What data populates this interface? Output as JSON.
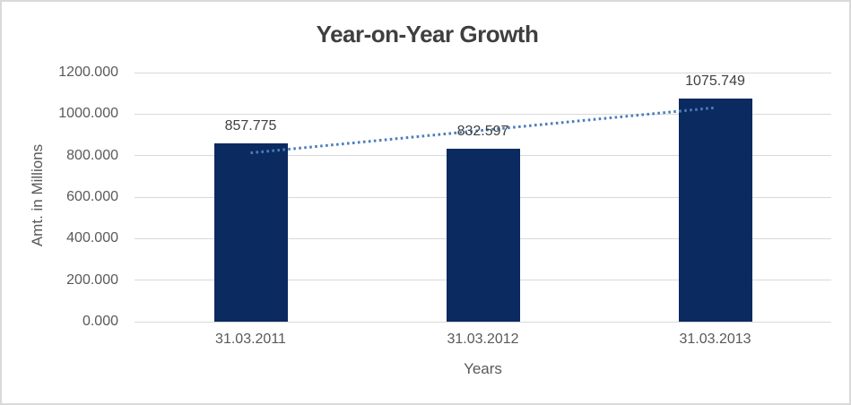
{
  "window": {
    "background": "#ffffff",
    "border_color": "#d9d9d9"
  },
  "chart_data": {
    "type": "bar",
    "title": "Year-on-Year Growth",
    "xlabel": "Years",
    "ylabel": "Amt. in Millions",
    "categories": [
      "31.03.2011",
      "31.03.2012",
      "31.03.2013"
    ],
    "values": [
      857.775,
      832.597,
      1075.749
    ],
    "data_labels": [
      "857.775",
      "832.597",
      "1075.749"
    ],
    "ylim": [
      0,
      1200
    ],
    "ytick_step": 200,
    "ytick_labels": [
      "0.000",
      "200.000",
      "400.000",
      "600.000",
      "800.000",
      "1000.000",
      "1200.000"
    ],
    "grid": true,
    "legend": "none",
    "bar_color": "#0b2a60",
    "trendline": {
      "type": "linear",
      "style": "dotted",
      "color": "#4a7ebb",
      "start_value": 813.1,
      "end_value": 1031.0
    },
    "colors": {
      "title_text": "#3f3f3f",
      "axis_text": "#595959",
      "data_label_text": "#404040",
      "gridline": "#d9d9d9"
    }
  }
}
